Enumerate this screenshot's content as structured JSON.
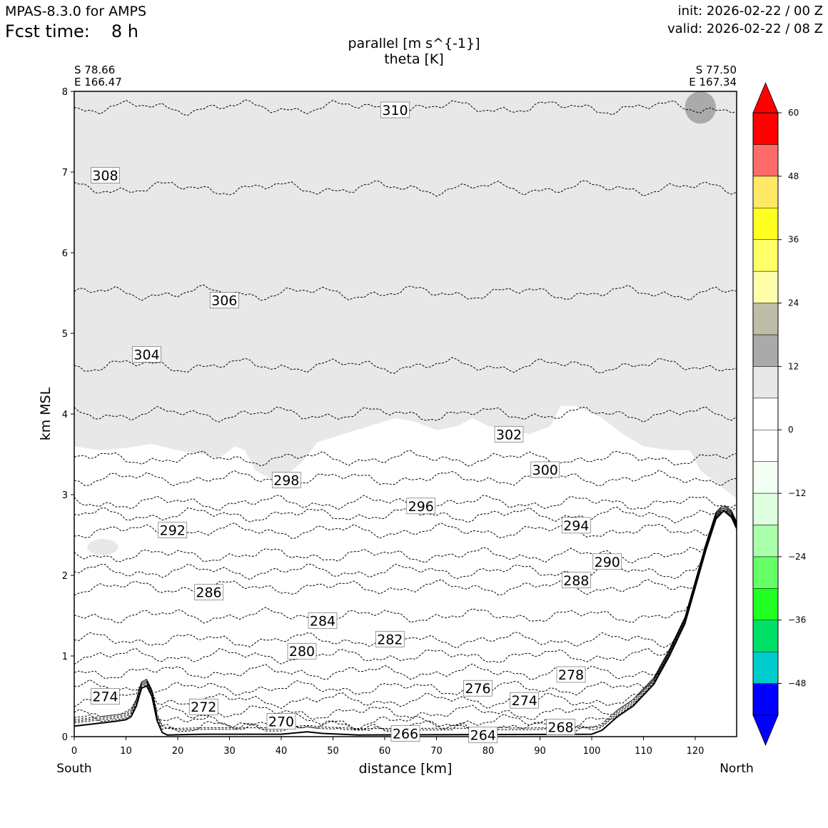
{
  "header": {
    "model": "MPAS-8.3.0 for AMPS",
    "fcst_label": "Fcst time:",
    "fcst_value": "8 h",
    "init": "init: 2026-02-22 / 00 Z",
    "valid": "valid: 2026-02-22 / 08 Z"
  },
  "chart_data": {
    "type": "contour",
    "title": "parallel [m s^{-1}]",
    "subtitle": "theta [K]",
    "xlabel": "distance [km]",
    "ylabel": "km MSL",
    "xlim": [
      0,
      128
    ],
    "ylim": [
      0,
      8
    ],
    "xticks": [
      0,
      10,
      20,
      30,
      40,
      50,
      60,
      70,
      80,
      90,
      100,
      110,
      120
    ],
    "yticks": [
      0,
      1,
      2,
      3,
      4,
      5,
      6,
      7,
      8
    ],
    "endpoints": {
      "left": {
        "lat": "S 78.66",
        "lon": "E 166.47",
        "direction": "South"
      },
      "right": {
        "lat": "S 77.50",
        "lon": "E 167.34",
        "direction": "North"
      }
    },
    "colorbar": {
      "levels": [
        -54,
        -48,
        -42,
        -36,
        -30,
        -24,
        -18,
        -12,
        -6,
        0,
        6,
        12,
        18,
        24,
        30,
        36,
        42,
        48,
        54,
        60
      ],
      "colors": [
        "#0000ff",
        "#00cccc",
        "#00e066",
        "#22ff22",
        "#66ff66",
        "#aaffaa",
        "#ddffdd",
        "#f2fff2",
        "#ffffff",
        "#ffffff",
        "#e8e8e8",
        "#aaaaaa",
        "#bdbda8",
        "#ffffaa",
        "#ffff66",
        "#ffff22",
        "#ffe866",
        "#ff6b6b",
        "#ff0000"
      ],
      "under_color": "#0000ff",
      "over_color": "#ff0000",
      "tick_labels": [
        "60",
        "48",
        "36",
        "24",
        "12",
        "0",
        "−12",
        "−24",
        "−36",
        "−48"
      ],
      "tick_values": [
        60,
        48,
        36,
        24,
        12,
        0,
        -12,
        -24,
        -36,
        -48
      ]
    },
    "theta_contours": [
      {
        "value": 310,
        "label": "310",
        "base_km": 7.8,
        "label_x_km": 62,
        "label_y_km": 7.77
      },
      {
        "value": 308,
        "label": "308",
        "base_km": 6.8,
        "label_x_km": 6,
        "label_y_km": 6.96
      },
      {
        "value": 306,
        "label": "306",
        "base_km": 5.5,
        "label_x_km": 29,
        "label_y_km": 5.41
      },
      {
        "value": 304,
        "label": "304",
        "base_km": 4.6,
        "label_x_km": 14,
        "label_y_km": 4.74
      },
      {
        "value": 302,
        "label": "302",
        "base_km": 4.0,
        "label_x_km": 84,
        "label_y_km": 3.75
      },
      {
        "value": 300,
        "label": "300",
        "base_km": 3.45,
        "label_x_km": 91,
        "label_y_km": 3.31
      },
      {
        "value": 298,
        "label": "298",
        "base_km": 3.2,
        "label_x_km": 41,
        "label_y_km": 3.18
      },
      {
        "value": 296,
        "label": "296",
        "base_km": 2.9,
        "label_x_km": 67,
        "label_y_km": 2.86
      },
      {
        "value": 294,
        "label": "294",
        "base_km": 2.75,
        "label_x_km": 97,
        "label_y_km": 2.62
      },
      {
        "value": 292,
        "label": "292",
        "base_km": 2.55,
        "label_x_km": 19,
        "label_y_km": 2.56
      },
      {
        "value": 290,
        "label": "290",
        "base_km": 2.25,
        "label_x_km": 103,
        "label_y_km": 2.17
      },
      {
        "value": 288,
        "label": "288",
        "base_km": 2.05,
        "label_x_km": 97,
        "label_y_km": 1.94
      },
      {
        "value": 286,
        "label": "286",
        "base_km": 1.85,
        "label_x_km": 26,
        "label_y_km": 1.79
      },
      {
        "value": 284,
        "label": "284",
        "base_km": 1.5,
        "label_x_km": 48,
        "label_y_km": 1.44
      },
      {
        "value": 282,
        "label": "282",
        "base_km": 1.2,
        "label_x_km": 61,
        "label_y_km": 1.21
      },
      {
        "value": 280,
        "label": "280",
        "base_km": 1.0,
        "label_x_km": 44,
        "label_y_km": 1.06
      },
      {
        "value": 278,
        "label": "278",
        "base_km": 0.8,
        "label_x_km": 96,
        "label_y_km": 0.77
      },
      {
        "value": 276,
        "label": "276",
        "base_km": 0.6,
        "label_x_km": 78,
        "label_y_km": 0.6
      },
      {
        "value": 274,
        "label": "274",
        "base_km": 0.45,
        "label_x_km": 6,
        "label_y_km": 0.5
      },
      {
        "value": 272,
        "label": "272",
        "base_km": 0.3,
        "label_x_km": 25,
        "label_y_km": 0.37
      },
      {
        "value": 270,
        "label": "270",
        "base_km": 0.18,
        "label_x_km": 40,
        "label_y_km": 0.19
      },
      {
        "value": 268,
        "label": "268",
        "base_km": 0.12,
        "label_x_km": 94,
        "label_y_km": 0.12
      },
      {
        "value": 266,
        "label": "266",
        "base_km": 0.06,
        "label_x_km": 64,
        "label_y_km": 0.04
      },
      {
        "value": 264,
        "label": "264",
        "base_km": 0.03,
        "label_x_km": 79,
        "label_y_km": 0.02
      }
    ],
    "extra_labels": [
      {
        "label": "274",
        "x_km": 87,
        "y_km": 0.45
      }
    ],
    "terrain_km": [
      [
        0,
        0.13
      ],
      [
        4,
        0.16
      ],
      [
        8,
        0.19
      ],
      [
        10,
        0.21
      ],
      [
        11,
        0.25
      ],
      [
        12,
        0.38
      ],
      [
        13,
        0.6
      ],
      [
        14,
        0.63
      ],
      [
        15,
        0.5
      ],
      [
        16,
        0.2
      ],
      [
        17,
        0.05
      ],
      [
        18,
        0.02
      ],
      [
        25,
        0.03
      ],
      [
        40,
        0.03
      ],
      [
        45,
        0.06
      ],
      [
        48,
        0.04
      ],
      [
        55,
        0.02
      ],
      [
        100,
        0.03
      ],
      [
        102,
        0.08
      ],
      [
        105,
        0.25
      ],
      [
        108,
        0.38
      ],
      [
        112,
        0.65
      ],
      [
        115,
        1.0
      ],
      [
        118,
        1.4
      ],
      [
        120,
        1.85
      ],
      [
        122,
        2.3
      ],
      [
        124,
        2.7
      ],
      [
        125.5,
        2.8
      ],
      [
        127,
        2.72
      ],
      [
        128,
        2.58
      ]
    ],
    "shaded_region": {
      "color_value": 6,
      "description": "parallel wind 6-12 m/s",
      "lower_boundary_km": [
        [
          0,
          3.6
        ],
        [
          5,
          3.55
        ],
        [
          10,
          3.58
        ],
        [
          15,
          3.63
        ],
        [
          20,
          3.55
        ],
        [
          25,
          3.5
        ],
        [
          28,
          3.45
        ],
        [
          31,
          3.6
        ],
        [
          33,
          3.55
        ],
        [
          35,
          3.3
        ],
        [
          38,
          3.2
        ],
        [
          40,
          3.2
        ],
        [
          44,
          3.4
        ],
        [
          47,
          3.65
        ],
        [
          52,
          3.75
        ],
        [
          57,
          3.85
        ],
        [
          62,
          3.95
        ],
        [
          66,
          3.9
        ],
        [
          70,
          3.8
        ],
        [
          74,
          3.85
        ],
        [
          77,
          3.95
        ],
        [
          80,
          3.85
        ],
        [
          84,
          3.8
        ],
        [
          88,
          3.75
        ],
        [
          92,
          3.85
        ],
        [
          94,
          4.1
        ],
        [
          97,
          4.1
        ],
        [
          102,
          3.95
        ],
        [
          106,
          3.75
        ],
        [
          110,
          3.6
        ],
        [
          115,
          3.55
        ],
        [
          119,
          3.55
        ],
        [
          121,
          3.3
        ],
        [
          123,
          3.2
        ],
        [
          125,
          3.1
        ],
        [
          127,
          3.0
        ],
        [
          128,
          2.95
        ]
      ]
    },
    "patches": [
      {
        "color_value": 12,
        "x_km": 118,
        "y_km": 7.8,
        "width_km": 6,
        "height_km": 0.4
      },
      {
        "color_value": 6,
        "x_km": 2.5,
        "y_km": 2.35,
        "width_km": 6,
        "height_km": 0.2
      }
    ]
  }
}
